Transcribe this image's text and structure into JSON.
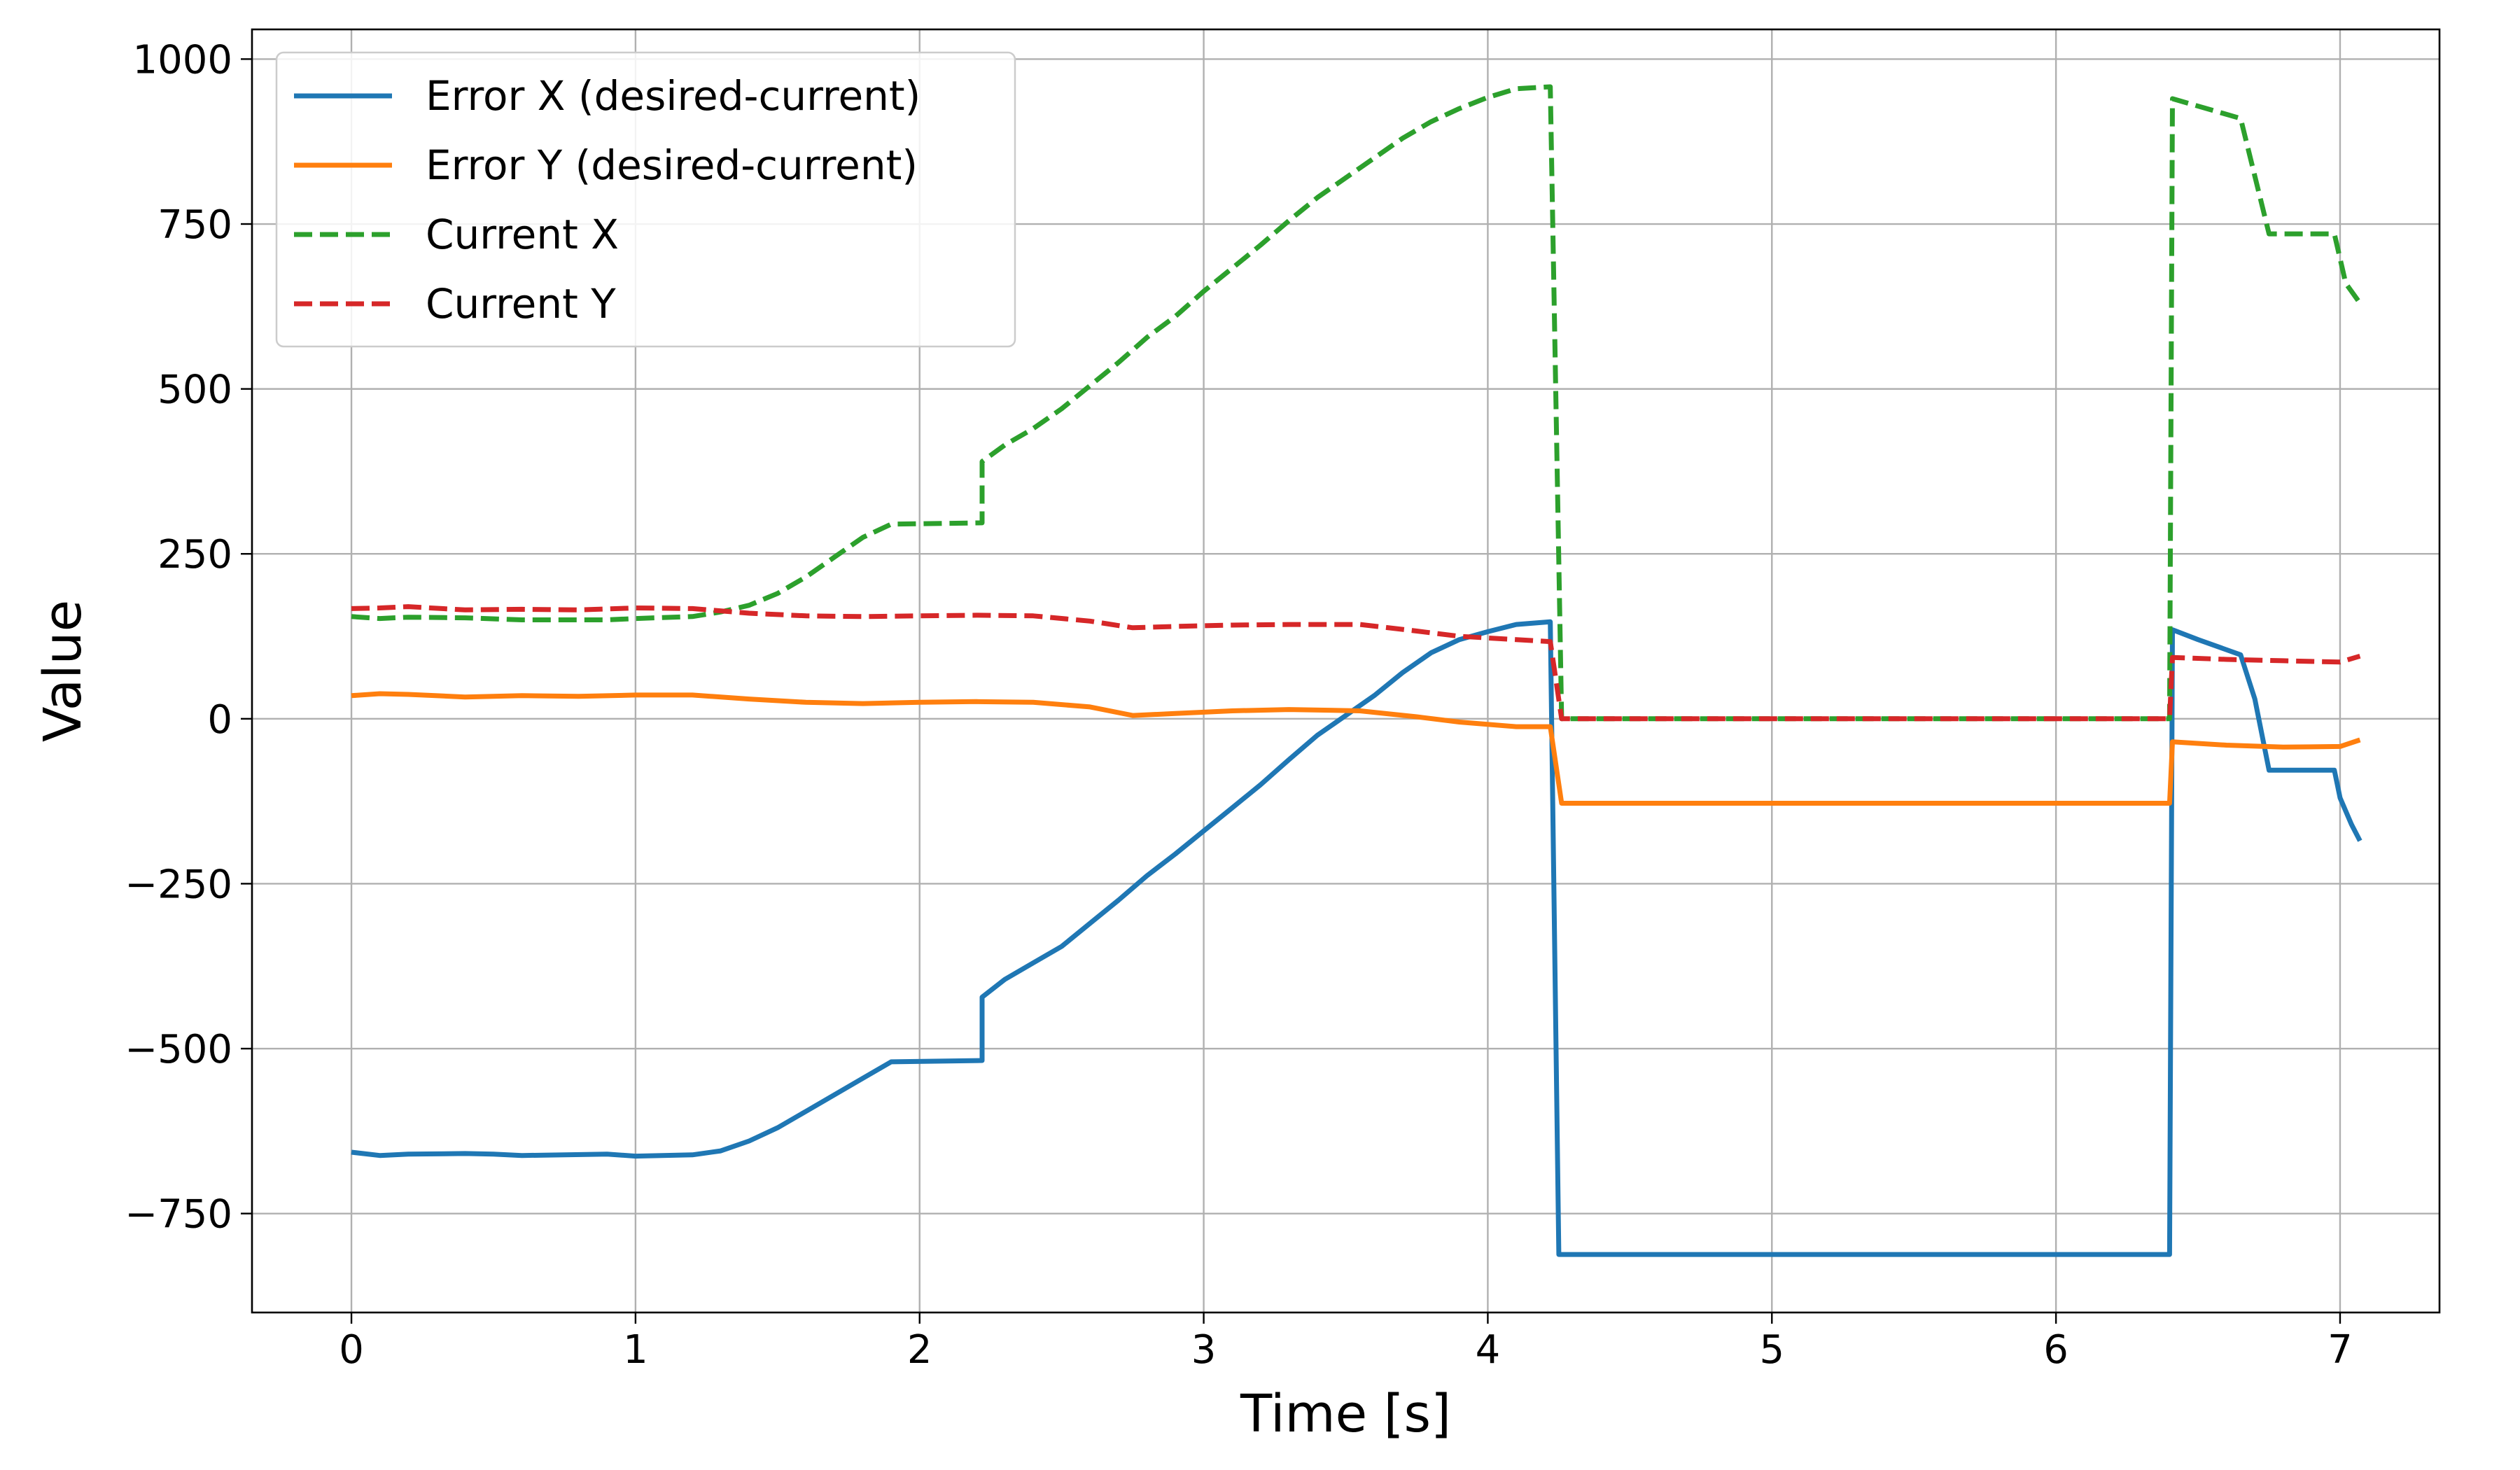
{
  "chart_data": {
    "type": "line",
    "title": "",
    "xlabel": "Time [s]",
    "ylabel": "Value",
    "xlim": [
      -0.35,
      7.35
    ],
    "ylim": [
      -900,
      1045
    ],
    "xticks": [
      0,
      1,
      2,
      3,
      4,
      5,
      6,
      7
    ],
    "xtick_labels": [
      "0",
      "1",
      "2",
      "3",
      "4",
      "5",
      "6",
      "7"
    ],
    "yticks": [
      -750,
      -500,
      -250,
      0,
      250,
      500,
      750,
      1000
    ],
    "ytick_labels": [
      "−750",
      "−500",
      "−250",
      "0",
      "250",
      "500",
      "750",
      "1000"
    ],
    "grid": true,
    "legend_position": "top-left",
    "series": [
      {
        "name": "Error X (desired-current)",
        "color": "#1f77b4",
        "style": "solid",
        "points": [
          [
            0,
            -657
          ],
          [
            0.1,
            -662
          ],
          [
            0.2,
            -660
          ],
          [
            0.4,
            -659
          ],
          [
            0.5,
            -660
          ],
          [
            0.6,
            -662
          ],
          [
            0.9,
            -660
          ],
          [
            1.0,
            -663
          ],
          [
            1.2,
            -661
          ],
          [
            1.3,
            -655
          ],
          [
            1.4,
            -640
          ],
          [
            1.5,
            -620
          ],
          [
            1.6,
            -595
          ],
          [
            1.7,
            -570
          ],
          [
            1.8,
            -545
          ],
          [
            1.9,
            -520
          ],
          [
            2.22,
            -518
          ],
          [
            2.22,
            -422
          ],
          [
            2.3,
            -395
          ],
          [
            2.4,
            -370
          ],
          [
            2.5,
            -345
          ],
          [
            2.6,
            -310
          ],
          [
            2.7,
            -275
          ],
          [
            2.8,
            -238
          ],
          [
            2.9,
            -205
          ],
          [
            3.0,
            -170
          ],
          [
            3.1,
            -135
          ],
          [
            3.2,
            -100
          ],
          [
            3.3,
            -62
          ],
          [
            3.4,
            -25
          ],
          [
            3.5,
            5
          ],
          [
            3.6,
            35
          ],
          [
            3.7,
            70
          ],
          [
            3.8,
            100
          ],
          [
            3.9,
            120
          ],
          [
            4.0,
            132
          ],
          [
            4.1,
            143
          ],
          [
            4.22,
            147
          ],
          [
            4.25,
            -812
          ],
          [
            6.4,
            -812
          ],
          [
            6.41,
            135
          ],
          [
            6.5,
            120
          ],
          [
            6.65,
            97
          ],
          [
            6.7,
            30
          ],
          [
            6.75,
            -78
          ],
          [
            6.98,
            -78
          ],
          [
            7.0,
            -120
          ],
          [
            7.04,
            -160
          ],
          [
            7.07,
            -185
          ]
        ]
      },
      {
        "name": "Error Y (desired-current)",
        "color": "#ff7f0e",
        "style": "solid",
        "points": [
          [
            0,
            35
          ],
          [
            0.1,
            38
          ],
          [
            0.2,
            37
          ],
          [
            0.4,
            33
          ],
          [
            0.6,
            35
          ],
          [
            0.8,
            34
          ],
          [
            1.0,
            36
          ],
          [
            1.2,
            36
          ],
          [
            1.4,
            30
          ],
          [
            1.6,
            25
          ],
          [
            1.8,
            23
          ],
          [
            2.0,
            25
          ],
          [
            2.2,
            26
          ],
          [
            2.4,
            25
          ],
          [
            2.6,
            18
          ],
          [
            2.75,
            5
          ],
          [
            2.9,
            8
          ],
          [
            3.1,
            12
          ],
          [
            3.3,
            14
          ],
          [
            3.55,
            12
          ],
          [
            3.75,
            3
          ],
          [
            3.9,
            -5
          ],
          [
            4.1,
            -12
          ],
          [
            4.22,
            -12
          ],
          [
            4.26,
            -128
          ],
          [
            6.4,
            -128
          ],
          [
            6.41,
            -35
          ],
          [
            6.6,
            -40
          ],
          [
            6.8,
            -43
          ],
          [
            7.0,
            -42
          ],
          [
            7.07,
            -32
          ]
        ]
      },
      {
        "name": "Current X",
        "color": "#2ca02c",
        "style": "dashed",
        "points": [
          [
            0,
            155
          ],
          [
            0.1,
            152
          ],
          [
            0.2,
            154
          ],
          [
            0.4,
            153
          ],
          [
            0.6,
            150
          ],
          [
            0.9,
            150
          ],
          [
            1.0,
            152
          ],
          [
            1.2,
            155
          ],
          [
            1.3,
            162
          ],
          [
            1.4,
            172
          ],
          [
            1.5,
            190
          ],
          [
            1.6,
            215
          ],
          [
            1.7,
            245
          ],
          [
            1.8,
            275
          ],
          [
            1.9,
            295
          ],
          [
            2.22,
            297
          ],
          [
            2.22,
            390
          ],
          [
            2.3,
            415
          ],
          [
            2.4,
            440
          ],
          [
            2.5,
            470
          ],
          [
            2.6,
            505
          ],
          [
            2.7,
            540
          ],
          [
            2.8,
            578
          ],
          [
            2.9,
            610
          ],
          [
            3.0,
            648
          ],
          [
            3.1,
            683
          ],
          [
            3.2,
            718
          ],
          [
            3.3,
            755
          ],
          [
            3.4,
            790
          ],
          [
            3.5,
            820
          ],
          [
            3.6,
            850
          ],
          [
            3.7,
            880
          ],
          [
            3.8,
            905
          ],
          [
            3.9,
            925
          ],
          [
            4.0,
            942
          ],
          [
            4.1,
            955
          ],
          [
            4.22,
            958
          ],
          [
            4.26,
            0
          ],
          [
            6.4,
            0
          ],
          [
            6.41,
            940
          ],
          [
            6.65,
            910
          ],
          [
            6.75,
            735
          ],
          [
            6.98,
            735
          ],
          [
            7.02,
            660
          ],
          [
            7.07,
            630
          ]
        ]
      },
      {
        "name": "Current Y",
        "color": "#d62728",
        "style": "dashed",
        "points": [
          [
            0,
            167
          ],
          [
            0.1,
            168
          ],
          [
            0.2,
            170
          ],
          [
            0.4,
            165
          ],
          [
            0.6,
            166
          ],
          [
            0.8,
            165
          ],
          [
            1.0,
            168
          ],
          [
            1.2,
            167
          ],
          [
            1.4,
            160
          ],
          [
            1.6,
            156
          ],
          [
            1.8,
            155
          ],
          [
            2.0,
            156
          ],
          [
            2.2,
            157
          ],
          [
            2.4,
            156
          ],
          [
            2.6,
            148
          ],
          [
            2.75,
            138
          ],
          [
            2.9,
            140
          ],
          [
            3.1,
            142
          ],
          [
            3.3,
            143
          ],
          [
            3.55,
            143
          ],
          [
            3.75,
            133
          ],
          [
            3.9,
            125
          ],
          [
            4.1,
            120
          ],
          [
            4.22,
            117
          ],
          [
            4.26,
            0
          ],
          [
            6.4,
            0
          ],
          [
            6.41,
            93
          ],
          [
            6.6,
            90
          ],
          [
            6.8,
            88
          ],
          [
            7.0,
            86
          ],
          [
            7.07,
            95
          ]
        ]
      }
    ]
  }
}
